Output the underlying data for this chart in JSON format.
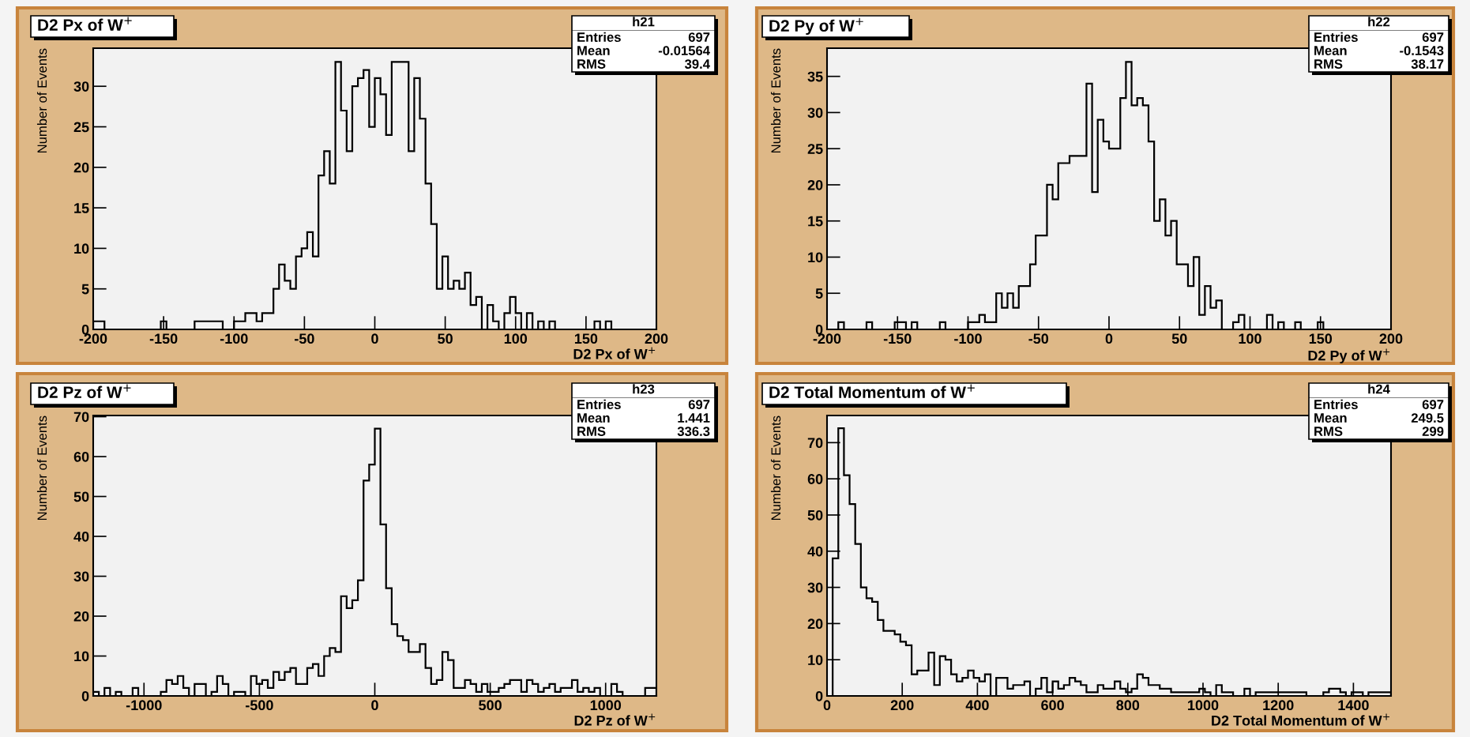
{
  "chart_data": [
    {
      "type": "histogram",
      "title": "D2 Px of W$^{+}$",
      "xlabel": "D2 Px of W$^{+}$",
      "ylabel": "Number of Events",
      "color": "#000000",
      "annotations": [
        "h21",
        "Entries",
        "697",
        "Mean",
        "-0.01564",
        "RMS",
        "39.4"
      ],
      "bins": [
        -200,
        -196,
        -192,
        -188,
        -184,
        -180,
        -176,
        -172,
        -168,
        -164,
        -160,
        -156,
        -152,
        -148,
        -144,
        -140,
        -136,
        -132,
        -128,
        -124,
        -120,
        -116,
        -112,
        -108,
        -104,
        -100,
        -96,
        -92,
        -88,
        -84,
        -80,
        -76,
        -72,
        -68,
        -64,
        -60,
        -56,
        -52,
        -48,
        -44,
        -40,
        -36,
        -32,
        -28,
        -24,
        -20,
        -16,
        -12,
        -8,
        -4,
        0,
        4,
        8,
        12,
        16,
        20,
        24,
        28,
        32,
        36,
        40,
        44,
        48,
        52,
        56,
        60,
        64,
        68,
        72,
        76,
        80,
        84,
        88,
        92,
        96,
        100,
        104,
        108,
        112,
        116,
        120,
        124,
        128,
        132,
        136,
        140,
        144,
        148,
        152,
        156,
        160,
        164,
        168,
        172,
        176,
        180,
        184,
        188,
        192,
        196,
        200
      ],
      "values": [
        1,
        1,
        0,
        0,
        0,
        0,
        0,
        0,
        0,
        0,
        0,
        0,
        1,
        0,
        0,
        0,
        0,
        0,
        1,
        1,
        1,
        1,
        1,
        0,
        0,
        1,
        1,
        2,
        2,
        1,
        2,
        2,
        5,
        8,
        6,
        5,
        9,
        10,
        12,
        9,
        19,
        22,
        18,
        33,
        27,
        22,
        30,
        31,
        32,
        25,
        31,
        29,
        24,
        33,
        33,
        33,
        22,
        31,
        26,
        18,
        13,
        5,
        9,
        5,
        6,
        5,
        7,
        3,
        4,
        0,
        3,
        1,
        0,
        2,
        4,
        2,
        0,
        2,
        0,
        1,
        0,
        1,
        0,
        0,
        0,
        0,
        0,
        0,
        0,
        1,
        0,
        1,
        0,
        0,
        0,
        0,
        0,
        0,
        0,
        0
      ],
      "xlim": [
        -200,
        200
      ],
      "xticks": [
        -200,
        -150,
        -100,
        -50,
        0,
        50,
        100,
        150,
        200
      ],
      "ylim": [
        0,
        34.7
      ],
      "yticks": [
        0,
        5,
        10,
        15,
        20,
        25,
        30
      ]
    },
    {
      "type": "histogram",
      "title": "D2 Py of W$^{+}$",
      "xlabel": "D2 Py of W$^{+}$",
      "ylabel": "Number of Events",
      "color": "#000000",
      "annotations": [
        "h22",
        "Entries",
        "697",
        "Mean",
        "-0.1543",
        "RMS",
        "38.17"
      ],
      "bins": [
        -200,
        -196,
        -192,
        -188,
        -184,
        -180,
        -176,
        -172,
        -168,
        -164,
        -160,
        -156,
        -152,
        -148,
        -144,
        -140,
        -136,
        -132,
        -128,
        -124,
        -120,
        -116,
        -112,
        -108,
        -104,
        -100,
        -96,
        -92,
        -88,
        -84,
        -80,
        -76,
        -72,
        -68,
        -64,
        -60,
        -56,
        -52,
        -48,
        -44,
        -40,
        -36,
        -32,
        -28,
        -24,
        -20,
        -16,
        -12,
        -8,
        -4,
        0,
        4,
        8,
        12,
        16,
        20,
        24,
        28,
        32,
        36,
        40,
        44,
        48,
        52,
        56,
        60,
        64,
        68,
        72,
        76,
        80,
        84,
        88,
        92,
        96,
        100,
        104,
        108,
        112,
        116,
        120,
        124,
        128,
        132,
        136,
        140,
        144,
        148,
        152,
        156,
        160,
        164,
        168,
        172,
        176,
        180,
        184,
        188,
        192,
        196,
        200
      ],
      "values": [
        0,
        0,
        1,
        0,
        0,
        0,
        0,
        1,
        0,
        0,
        0,
        0,
        1,
        1,
        0,
        1,
        0,
        0,
        0,
        0,
        1,
        0,
        0,
        0,
        0,
        1,
        1,
        2,
        1,
        1,
        5,
        3,
        5,
        3,
        6,
        6,
        9,
        13,
        13,
        20,
        18,
        23,
        23,
        24,
        24,
        24,
        34,
        19,
        29,
        26,
        25,
        25,
        32,
        37,
        31,
        32,
        31,
        26,
        15,
        18,
        13,
        15,
        9,
        9,
        6,
        10,
        2,
        6,
        3,
        4,
        0,
        0,
        1,
        2,
        0,
        0,
        0,
        0,
        2,
        0,
        1,
        0,
        0,
        1,
        0,
        0,
        0,
        1,
        0,
        0,
        0,
        0,
        0,
        0,
        0,
        0,
        0,
        0,
        0,
        0
      ],
      "xlim": [
        -200,
        200
      ],
      "xticks": [
        -200,
        -150,
        -100,
        -50,
        0,
        50,
        100,
        150,
        200
      ],
      "ylim": [
        0,
        38.9
      ],
      "yticks": [
        0,
        5,
        10,
        15,
        20,
        25,
        30,
        35
      ]
    },
    {
      "type": "histogram",
      "title": "D2 Pz of W$^{+}$",
      "xlabel": "D2 Pz of W$^{+}$",
      "ylabel": "Number of Events",
      "color": "#000000",
      "annotations": [
        "h23",
        "Entries",
        "697",
        "Mean",
        "1.441",
        "RMS",
        "336.3"
      ],
      "bins": [
        -1220,
        -1195.6,
        -1171.2,
        -1146.8,
        -1122.4,
        -1098,
        -1073.6,
        -1049.2,
        -1024.8,
        -1000.4,
        -976,
        -951.6,
        -927.2,
        -902.8,
        -878.4,
        -854,
        -829.6,
        -805.2,
        -780.8,
        -756.4,
        -732,
        -707.6,
        -683.2,
        -658.8,
        -634.4,
        -610,
        -585.6,
        -561.2,
        -536.8,
        -512.4,
        -488,
        -463.6,
        -439.2,
        -414.8,
        -390.4,
        -366,
        -341.6,
        -317.2,
        -292.8,
        -268.4,
        -244,
        -219.6,
        -195.2,
        -170.8,
        -146.4,
        -122,
        -97.6,
        -73.2,
        -48.8,
        -24.4,
        0,
        24.4,
        48.8,
        73.2,
        97.6,
        122,
        146.4,
        170.8,
        195.2,
        219.6,
        244,
        268.4,
        292.8,
        317.2,
        341.6,
        366,
        390.4,
        414.8,
        439.2,
        463.6,
        488,
        512.4,
        536.8,
        561.2,
        585.6,
        610,
        634.4,
        658.8,
        683.2,
        707.6,
        732,
        756.4,
        780.8,
        805.2,
        829.6,
        854,
        878.4,
        902.8,
        927.2,
        951.6,
        976,
        1000.4,
        1024.8,
        1049.2,
        1073.6,
        1098,
        1122.4,
        1146.8,
        1171.2,
        1195.6,
        1220
      ],
      "values": [
        1,
        0,
        2,
        0,
        1,
        0,
        0,
        2,
        0,
        0,
        0,
        0,
        1,
        4,
        3,
        5,
        2,
        0,
        3,
        3,
        0,
        1,
        5,
        3,
        0,
        1,
        1,
        0,
        5,
        3,
        4,
        2,
        6,
        4,
        6,
        7,
        3,
        3,
        7,
        8,
        5,
        10,
        12,
        11,
        25,
        22,
        24,
        29,
        54,
        58,
        67,
        43,
        27,
        18,
        15,
        14,
        11,
        11,
        13,
        7,
        3,
        4,
        11,
        9,
        2,
        2,
        4,
        3,
        1,
        3,
        1,
        1,
        2,
        3,
        4,
        4,
        1,
        4,
        3,
        1,
        2,
        3,
        1,
        2,
        2,
        4,
        1,
        2,
        1,
        2,
        0,
        0,
        3,
        1,
        0,
        0,
        0,
        0,
        2,
        2
      ],
      "xlim": [
        -1220,
        1220
      ],
      "xticks": [
        -1000,
        -500,
        0,
        500,
        1000
      ],
      "ylim": [
        0,
        70.3
      ],
      "yticks": [
        0,
        10,
        20,
        30,
        40,
        50,
        60,
        70
      ]
    },
    {
      "type": "histogram",
      "title": "D2 Total Momentum of W$^{+}$",
      "xlabel": "D2 Total Momentum of W$^{+}$",
      "ylabel": "Number of Events",
      "color": "#000000",
      "annotations": [
        "h24",
        "Entries",
        "697",
        "Mean",
        "249.5",
        "RMS",
        "299"
      ],
      "bins": [
        0,
        15,
        30,
        45,
        60,
        75,
        90,
        105,
        120,
        135,
        150,
        165,
        180,
        195,
        210,
        225,
        240,
        255,
        270,
        285,
        300,
        315,
        330,
        345,
        360,
        375,
        390,
        405,
        420,
        435,
        450,
        465,
        480,
        495,
        510,
        525,
        540,
        555,
        570,
        585,
        600,
        615,
        630,
        645,
        660,
        675,
        690,
        705,
        720,
        735,
        750,
        765,
        780,
        795,
        810,
        825,
        840,
        855,
        870,
        885,
        900,
        915,
        930,
        945,
        960,
        975,
        990,
        1005,
        1020,
        1035,
        1050,
        1065,
        1080,
        1095,
        1110,
        1125,
        1140,
        1155,
        1170,
        1185,
        1200,
        1215,
        1230,
        1245,
        1260,
        1275,
        1290,
        1305,
        1320,
        1335,
        1350,
        1365,
        1380,
        1395,
        1410,
        1425,
        1440,
        1455,
        1470,
        1485,
        1500
      ],
      "values": [
        0,
        38,
        74,
        61,
        53,
        42,
        30,
        27,
        26,
        21,
        18,
        18,
        17,
        15,
        14,
        6,
        7,
        7,
        12,
        3,
        11,
        10,
        6,
        4,
        5,
        7,
        5,
        4,
        6,
        0,
        5,
        5,
        2,
        3,
        3,
        4,
        0,
        2,
        5,
        1,
        4,
        2,
        3,
        5,
        4,
        3,
        1,
        1,
        3,
        2,
        2,
        4,
        2,
        1,
        2,
        6,
        5,
        3,
        3,
        2,
        2,
        1,
        1,
        1,
        1,
        1,
        2,
        1,
        0,
        3,
        1,
        1,
        0,
        0,
        2,
        0,
        1,
        1,
        1,
        1,
        1,
        1,
        1,
        1,
        1,
        0,
        0,
        0,
        1,
        2,
        2,
        1,
        0,
        1,
        1,
        0,
        1,
        1,
        1,
        1
      ],
      "xlim": [
        0,
        1500
      ],
      "xticks": [
        0,
        200,
        400,
        600,
        800,
        1000,
        1200,
        1400
      ],
      "ylim": [
        0,
        77.5
      ],
      "yticks": [
        0,
        10,
        20,
        30,
        40,
        50,
        60,
        70
      ]
    }
  ]
}
